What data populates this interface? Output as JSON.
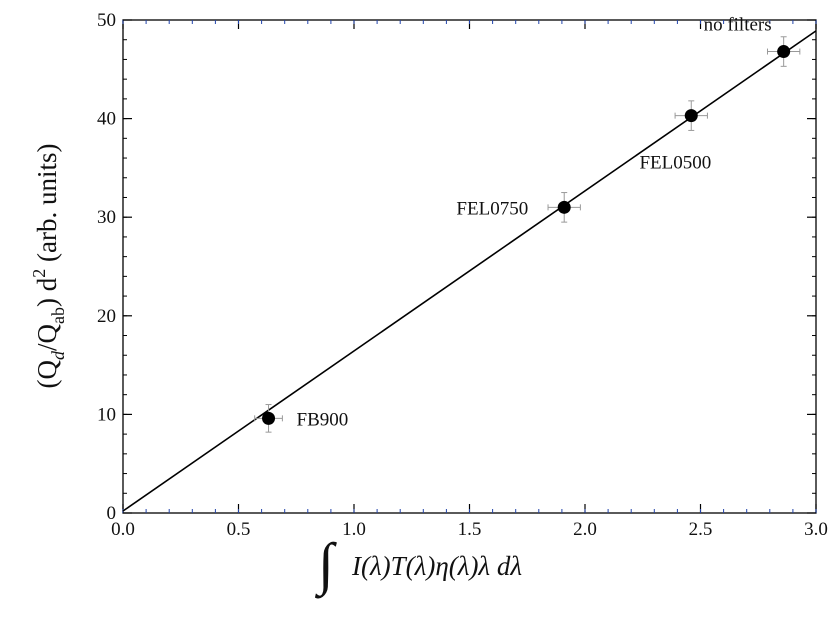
{
  "chart_data": {
    "type": "scatter",
    "title": "",
    "xlabel": {
      "text": "∫ I(λ)T(λ)η(λ)λ dλ",
      "parts": [
        "∫",
        "I(λ)T(λ)η(λ)λ dλ"
      ]
    },
    "ylabel": {
      "text": "(Qd/Qab) d2 (arb. units)",
      "parts": [
        "(Q",
        "d",
        "/Q",
        "ab",
        ") d",
        "2",
        " (arb. units)"
      ]
    },
    "xlim": [
      0,
      3
    ],
    "ylim": [
      0,
      50
    ],
    "x_ticks": [
      "0.0",
      "0.5",
      "1.0",
      "1.5",
      "2.0",
      "2.5",
      "3.0"
    ],
    "y_ticks": [
      "0",
      "10",
      "20",
      "30",
      "40",
      "50"
    ],
    "grid": false,
    "series": [
      {
        "kind": "points",
        "points": [
          {
            "x": 0.63,
            "y": 9.6,
            "x_err": 0.06,
            "y_err": 1.4,
            "label": "FB900"
          },
          {
            "x": 1.91,
            "y": 31.0,
            "x_err": 0.07,
            "y_err": 1.5,
            "label": "FEL0750"
          },
          {
            "x": 2.46,
            "y": 40.3,
            "x_err": 0.07,
            "y_err": 1.5,
            "label": "FEL0500"
          },
          {
            "x": 2.86,
            "y": 46.8,
            "x_err": 0.07,
            "y_err": 1.5,
            "label": "no filters"
          }
        ]
      },
      {
        "kind": "fit-line",
        "x": [
          0,
          3.0
        ],
        "y": [
          0.2,
          48.9
        ]
      }
    ],
    "colors": {
      "points": "#000000",
      "line": "#000000",
      "error_bars": "#999999",
      "minor_ticks": "#2244aa"
    }
  }
}
